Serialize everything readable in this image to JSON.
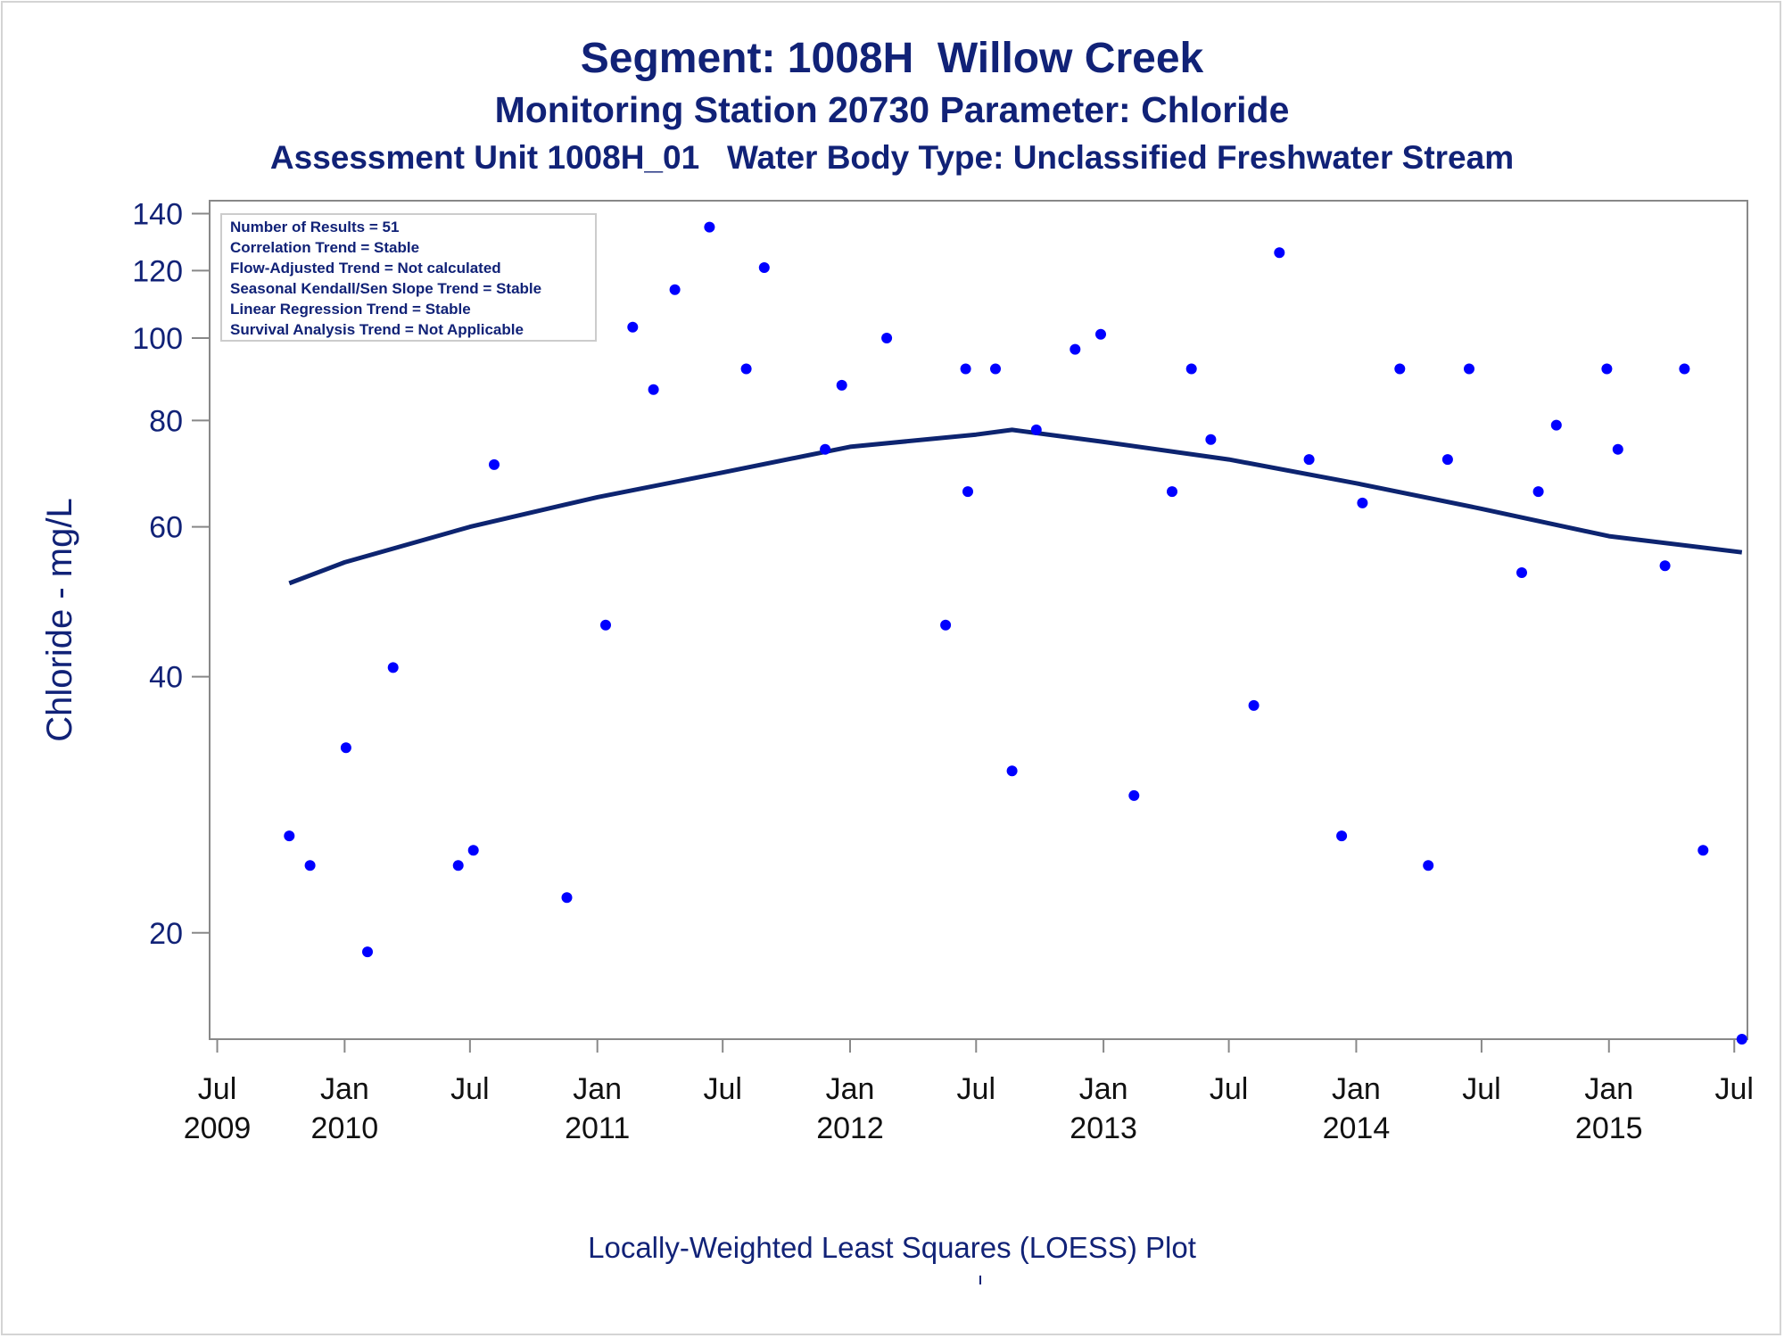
{
  "titles": {
    "line1": "Segment: 1008H  Willow Creek",
    "line2": "Monitoring Station 20730 Parameter: Chloride",
    "line3": "Assessment Unit 1008H_01   Water Body Type: Unclassified Freshwater Stream"
  },
  "footnote": "Locally-Weighted Least Squares (LOESS) Plot",
  "inset": {
    "lines": [
      "Number of Results = 51",
      "Correlation Trend = Stable",
      "Flow-Adjusted Trend = Not calculated",
      "Seasonal Kendall/Sen Slope Trend = Stable",
      "Linear Regression Trend = Stable",
      "Survival Analysis Trend = Not Applicable"
    ]
  },
  "colors": {
    "text": "#112277",
    "points": "#0000ff",
    "loess": "#0d2470",
    "axis": "#888888"
  },
  "chart_data": {
    "type": "scatter",
    "ylabel": "Chloride - mg/L",
    "yscale": "log",
    "ylim": [
      15,
      145
    ],
    "xlim": [
      "2009-06-20",
      "2015-07-20"
    ],
    "yticks": [
      20,
      40,
      60,
      80,
      100,
      120,
      140
    ],
    "xticks": [
      {
        "date": "2009-07-01",
        "month": "Jul",
        "year": "2009"
      },
      {
        "date": "2010-01-01",
        "month": "Jan",
        "year": "2010"
      },
      {
        "date": "2010-07-01",
        "month": "Jul",
        "year": ""
      },
      {
        "date": "2011-01-01",
        "month": "Jan",
        "year": "2011"
      },
      {
        "date": "2011-07-01",
        "month": "Jul",
        "year": ""
      },
      {
        "date": "2012-01-01",
        "month": "Jan",
        "year": "2012"
      },
      {
        "date": "2012-07-01",
        "month": "Jul",
        "year": ""
      },
      {
        "date": "2013-01-01",
        "month": "Jan",
        "year": "2013"
      },
      {
        "date": "2013-07-01",
        "month": "Jul",
        "year": ""
      },
      {
        "date": "2014-01-01",
        "month": "Jan",
        "year": "2014"
      },
      {
        "date": "2014-07-01",
        "month": "Jul",
        "year": ""
      },
      {
        "date": "2015-01-01",
        "month": "Jan",
        "year": "2015"
      },
      {
        "date": "2015-07-01",
        "month": "Jul",
        "year": ""
      }
    ],
    "points": [
      {
        "x": "2009-10-13",
        "y": 26
      },
      {
        "x": "2009-11-12",
        "y": 24
      },
      {
        "x": "2010-01-03",
        "y": 33
      },
      {
        "x": "2010-02-03",
        "y": 19
      },
      {
        "x": "2010-03-12",
        "y": 41
      },
      {
        "x": "2010-04-19",
        "y": 103
      },
      {
        "x": "2010-06-14",
        "y": 24
      },
      {
        "x": "2010-07-06",
        "y": 25
      },
      {
        "x": "2010-08-05",
        "y": 71
      },
      {
        "x": "2010-10-18",
        "y": 113
      },
      {
        "x": "2010-11-18",
        "y": 22
      },
      {
        "x": "2011-01-13",
        "y": 46
      },
      {
        "x": "2011-02-21",
        "y": 103
      },
      {
        "x": "2011-03-23",
        "y": 87
      },
      {
        "x": "2011-04-23",
        "y": 114
      },
      {
        "x": "2011-06-12",
        "y": 135
      },
      {
        "x": "2011-08-04",
        "y": 92
      },
      {
        "x": "2011-08-30",
        "y": 121
      },
      {
        "x": "2011-11-26",
        "y": 74
      },
      {
        "x": "2011-12-20",
        "y": 88
      },
      {
        "x": "2012-02-23",
        "y": 100
      },
      {
        "x": "2012-05-18",
        "y": 46
      },
      {
        "x": "2012-06-19",
        "y": 66
      },
      {
        "x": "2012-06-16",
        "y": 92
      },
      {
        "x": "2012-07-29",
        "y": 92
      },
      {
        "x": "2012-08-22",
        "y": 31
      },
      {
        "x": "2012-09-26",
        "y": 78
      },
      {
        "x": "2012-11-21",
        "y": 97
      },
      {
        "x": "2012-12-28",
        "y": 101
      },
      {
        "x": "2013-02-14",
        "y": 29
      },
      {
        "x": "2013-04-10",
        "y": 66
      },
      {
        "x": "2013-05-08",
        "y": 92
      },
      {
        "x": "2013-06-05",
        "y": 76
      },
      {
        "x": "2013-08-06",
        "y": 37
      },
      {
        "x": "2013-09-12",
        "y": 126
      },
      {
        "x": "2013-10-25",
        "y": 72
      },
      {
        "x": "2013-12-11",
        "y": 26
      },
      {
        "x": "2014-01-10",
        "y": 64
      },
      {
        "x": "2014-03-05",
        "y": 92
      },
      {
        "x": "2014-04-15",
        "y": 24
      },
      {
        "x": "2014-05-13",
        "y": 72
      },
      {
        "x": "2014-06-13",
        "y": 92
      },
      {
        "x": "2014-08-28",
        "y": 53
      },
      {
        "x": "2014-09-21",
        "y": 66
      },
      {
        "x": "2014-10-17",
        "y": 79
      },
      {
        "x": "2014-12-29",
        "y": 92
      },
      {
        "x": "2015-01-14",
        "y": 74
      },
      {
        "x": "2015-03-23",
        "y": 54
      },
      {
        "x": "2015-04-20",
        "y": 92
      },
      {
        "x": "2015-05-17",
        "y": 25
      },
      {
        "x": "2015-07-12",
        "y": 15
      }
    ],
    "series": [
      {
        "type": "loess",
        "points": [
          {
            "x": "2009-10-13",
            "y": 51.5
          },
          {
            "x": "2010-01-01",
            "y": 54.5
          },
          {
            "x": "2010-07-01",
            "y": 60
          },
          {
            "x": "2011-01-01",
            "y": 65
          },
          {
            "x": "2011-07-01",
            "y": 69.5
          },
          {
            "x": "2012-01-01",
            "y": 74.5
          },
          {
            "x": "2012-07-01",
            "y": 77
          },
          {
            "x": "2012-08-22",
            "y": 78
          },
          {
            "x": "2013-01-01",
            "y": 75.5
          },
          {
            "x": "2013-07-01",
            "y": 72
          },
          {
            "x": "2014-01-01",
            "y": 67.5
          },
          {
            "x": "2014-07-01",
            "y": 63
          },
          {
            "x": "2015-01-01",
            "y": 58.5
          },
          {
            "x": "2015-07-12",
            "y": 56
          }
        ]
      }
    ]
  }
}
